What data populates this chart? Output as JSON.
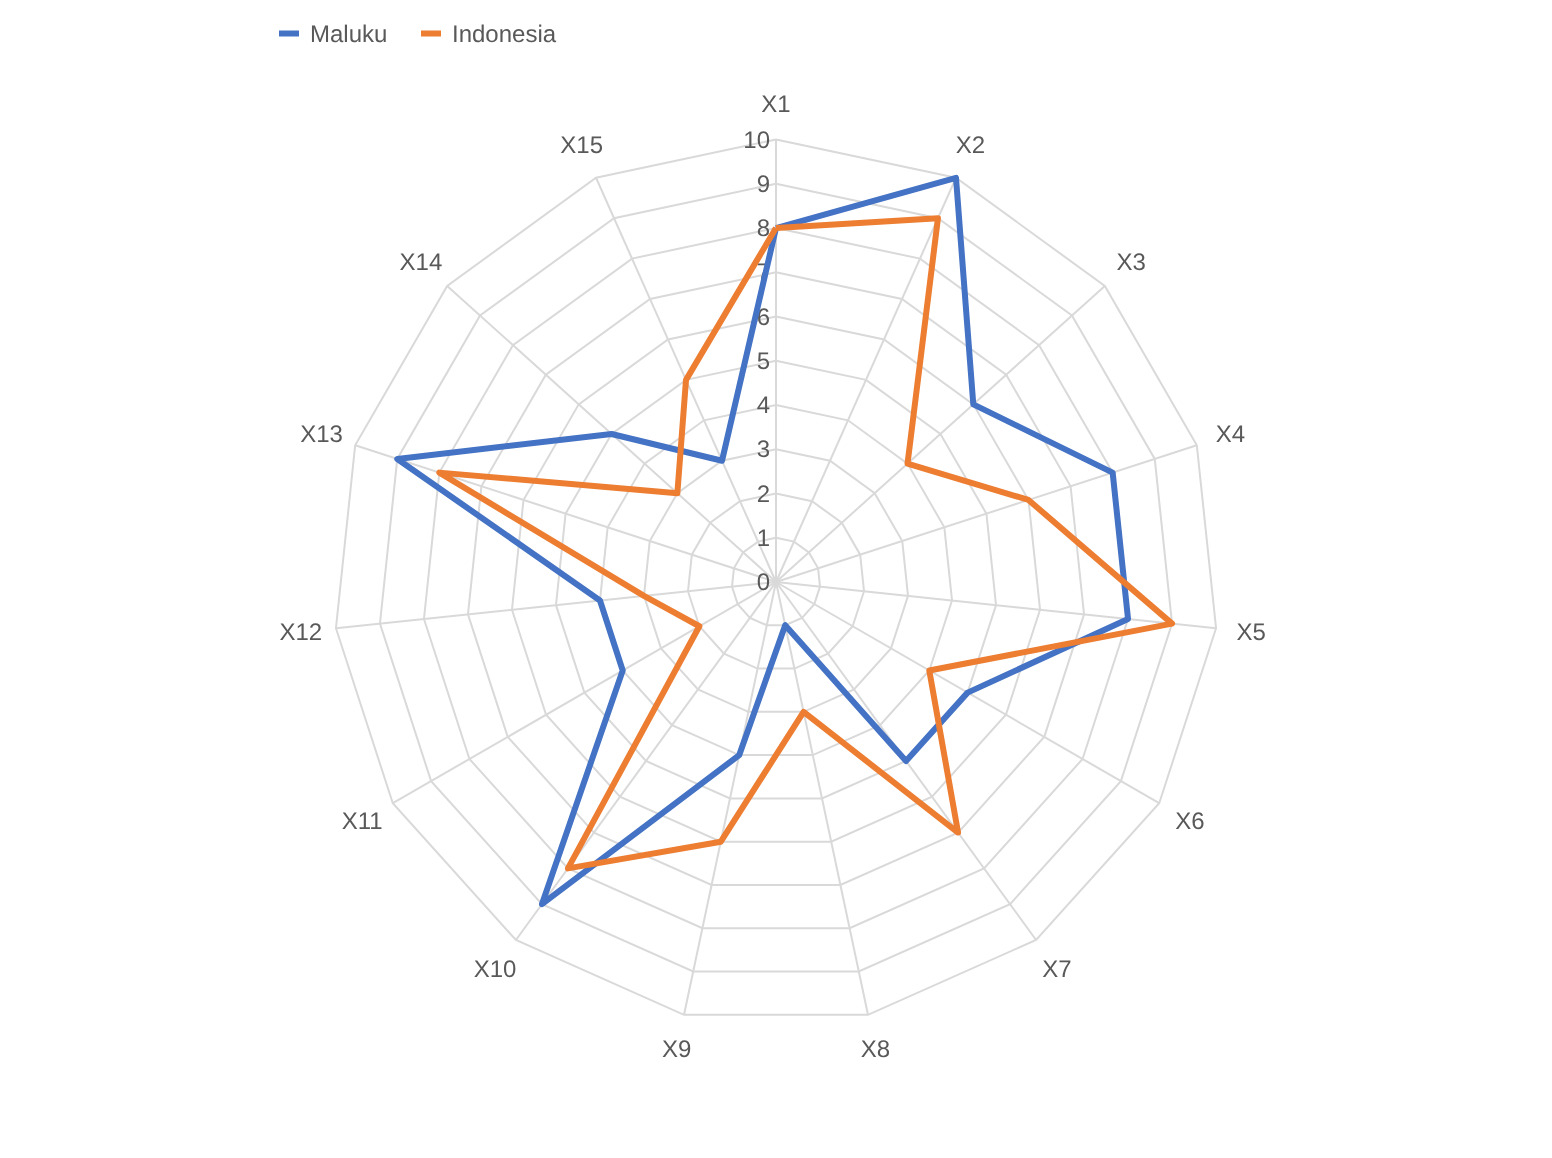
{
  "chart_data": {
    "type": "radar",
    "categories": [
      "X1",
      "X2",
      "X3",
      "X4",
      "X5",
      "X6",
      "X7",
      "X8",
      "X9",
      "X10",
      "X11",
      "X12",
      "X13",
      "X14",
      "X15"
    ],
    "series": [
      {
        "name": "Maluku",
        "color": "#4472c4",
        "values": [
          8,
          10,
          6,
          8,
          8,
          5,
          5,
          1,
          4,
          9,
          4,
          4,
          9,
          5,
          3
        ]
      },
      {
        "name": "Indonesia",
        "color": "#ed7d31",
        "values": [
          8,
          9,
          4,
          6,
          9,
          4,
          7,
          3,
          6,
          8,
          2,
          3,
          8,
          3,
          5
        ]
      }
    ],
    "ylim": [
      0,
      10
    ],
    "yticks": [
      0,
      1,
      2,
      3,
      4,
      5,
      6,
      7,
      8,
      9,
      10
    ],
    "grid": true,
    "legend": "top"
  }
}
